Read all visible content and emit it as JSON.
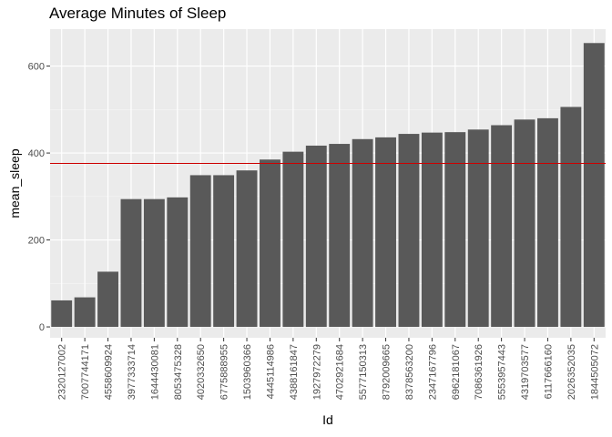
{
  "chart_data": {
    "type": "bar",
    "title": "Average Minutes of Sleep",
    "xlabel": "Id",
    "ylabel": "mean_sleep",
    "categories": [
      "2320127002",
      "7007744171",
      "4558609924",
      "3977333714",
      "1644430081",
      "8053475328",
      "4020332650",
      "6775888955",
      "1503960366",
      "4445114986",
      "4388161847",
      "1927972279",
      "4702921684",
      "5577150313",
      "8792009665",
      "8378563200",
      "2347167796",
      "6962181067",
      "7086361926",
      "5553957443",
      "4319703577",
      "6117666160",
      "2026352035",
      "1844505072"
    ],
    "values": [
      61,
      68,
      127,
      294,
      294,
      298,
      349,
      349,
      360,
      385,
      403,
      417,
      421,
      432,
      436,
      444,
      447,
      448,
      454,
      464,
      477,
      480,
      506,
      653
    ],
    "reference_line": 376,
    "ylim": [
      -25,
      685
    ],
    "yticks": [
      0,
      200,
      400,
      600
    ],
    "grid": true,
    "legend": "none",
    "colors": {
      "bar": "#595959",
      "panel": "#ebebeb",
      "grid_major": "#ffffff",
      "grid_minor": "#f5f5f5",
      "reference_line": "#cc0000",
      "tick": "#333333",
      "tick_text": "#4d4d4d"
    }
  }
}
